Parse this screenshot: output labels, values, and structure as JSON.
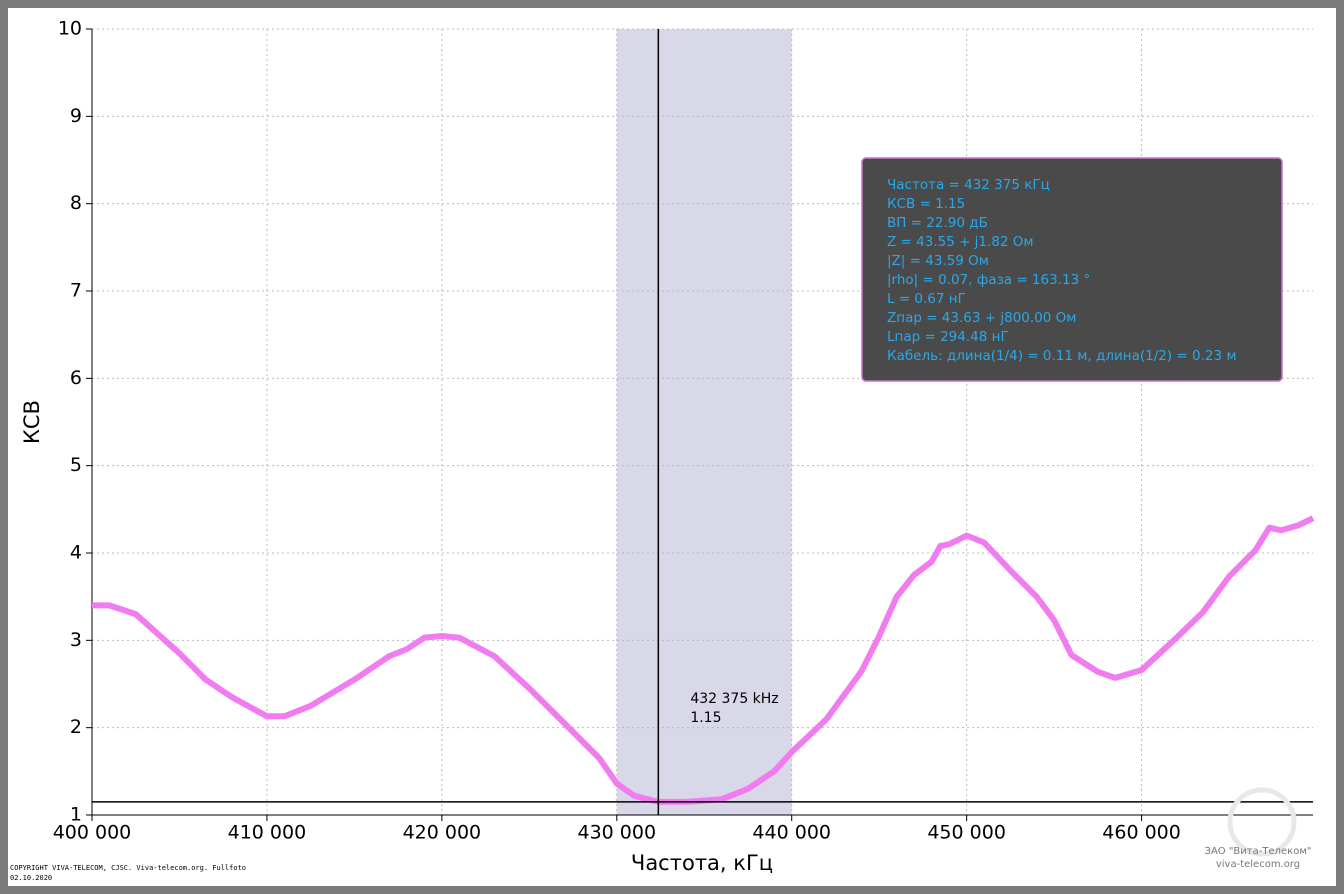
{
  "chart_data": {
    "type": "line",
    "x_label": "Частота, кГц",
    "y_label": "КСВ",
    "x": [
      400000,
      401000,
      402500,
      405000,
      406500,
      408000,
      410000,
      411000,
      412500,
      415000,
      417000,
      418000,
      419000,
      420000,
      421000,
      423000,
      425000,
      427000,
      429000,
      430000,
      431000,
      432375,
      434000,
      436000,
      437500,
      439000,
      440000,
      442000,
      444000,
      445000,
      446000,
      447000,
      448000,
      448500,
      449000,
      450000,
      451000,
      452500,
      454000,
      455000,
      456000,
      457500,
      458500,
      460000,
      462000,
      463500,
      465000,
      466500,
      467300,
      468000,
      469000,
      469800
    ],
    "series": [
      {
        "color": "#f07cf0",
        "values": [
          3.4,
          3.4,
          3.3,
          2.85,
          2.55,
          2.35,
          2.13,
          2.13,
          2.25,
          2.55,
          2.82,
          2.9,
          3.03,
          3.05,
          3.03,
          2.82,
          2.45,
          2.05,
          1.65,
          1.36,
          1.22,
          1.15,
          1.15,
          1.18,
          1.3,
          1.5,
          1.72,
          2.1,
          2.65,
          3.05,
          3.5,
          3.75,
          3.9,
          4.08,
          4.1,
          4.2,
          4.12,
          3.8,
          3.5,
          3.23,
          2.83,
          2.64,
          2.57,
          2.66,
          3.03,
          3.32,
          3.73,
          4.03,
          4.29,
          4.26,
          4.32,
          4.4
        ]
      }
    ],
    "xlim": [
      400000,
      469800
    ],
    "ylim": [
      1,
      10
    ],
    "xticks": [
      {
        "value": 400000,
        "label": "400 000"
      },
      {
        "value": 410000,
        "label": "410 000"
      },
      {
        "value": 420000,
        "label": "420 000"
      },
      {
        "value": 430000,
        "label": "430 000"
      },
      {
        "value": 440000,
        "label": "440 000"
      },
      {
        "value": 450000,
        "label": "450 000"
      },
      {
        "value": 460000,
        "label": "460 000"
      }
    ],
    "yticks": [
      1,
      2,
      3,
      4,
      5,
      6,
      7,
      8,
      9,
      10
    ],
    "grid": true,
    "band": [
      430000,
      440000
    ],
    "cursor": {
      "x": 432375,
      "y": 1.15,
      "x_label": "432 375 kHz"
    },
    "info_lines": [
      "Частота = 432 375 кГц",
      "КСВ = 1.15",
      "ВП = 22.90 дБ",
      "Z = 43.55 + j1.82 Ом",
      "|Z| = 43.59 Ом",
      "|rho| = 0.07, фаза = 163.13 °",
      "L = 0.67 нГ",
      "Zпар = 43.63 + j800.00 Ом",
      "Lпар = 294.48 нГ",
      "Кабель: длина(1/4) = 0.11 м, длина(1/2) = 0.23 м"
    ]
  },
  "footer": {
    "copyright": [
      "COPYRIGHT VIVA-TELECOM, CJSC. Viva-telecom.org. Fullfoto",
      "02.10.2020"
    ],
    "watermark": [
      "ЗАО \"Вита-Телеком\"",
      "viva-telecom.org"
    ]
  }
}
